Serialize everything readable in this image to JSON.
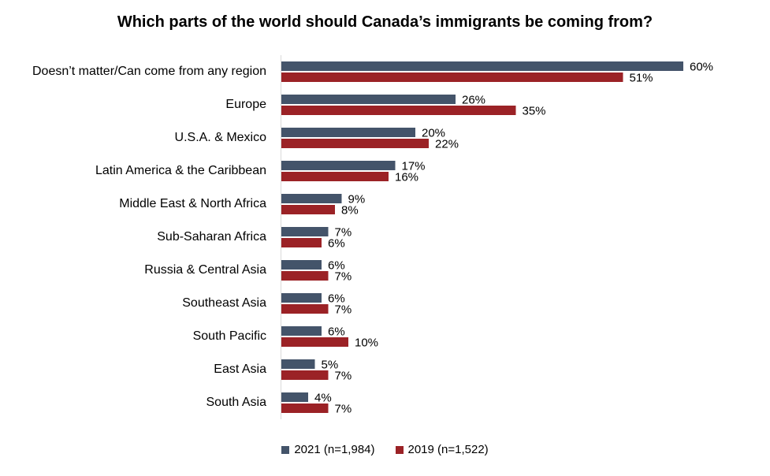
{
  "chart_data": {
    "type": "bar",
    "orientation": "horizontal",
    "title": "Which parts of the world should Canada’s immigrants be coming from?",
    "categories": [
      "Doesn’t matter/Can come from any region",
      "Europe",
      "U.S.A. & Mexico",
      "Latin America & the Caribbean",
      "Middle East & North Africa",
      "Sub-Saharan Africa",
      "Russia & Central Asia",
      "Southeast Asia",
      "South Pacific",
      "East Asia",
      "South Asia"
    ],
    "series": [
      {
        "name": "2021 (n=1,984)",
        "color": "#44546a",
        "values": [
          60,
          26,
          20,
          17,
          9,
          7,
          6,
          6,
          6,
          5,
          4
        ],
        "labels": [
          "60%",
          "26%",
          "20%",
          "17%",
          "9%",
          "7%",
          "6%",
          "6%",
          "6%",
          "5%",
          "4%"
        ]
      },
      {
        "name": "2019 (n=1,522)",
        "color": "#9b2226",
        "values": [
          51,
          35,
          22,
          16,
          8,
          6,
          7,
          7,
          10,
          7,
          7
        ],
        "labels": [
          "51%",
          "35%",
          "22%",
          "16%",
          "8%",
          "6%",
          "7%",
          "7%",
          "10%",
          "7%",
          "7%"
        ]
      }
    ],
    "xlim": [
      0,
      60
    ],
    "grid": false,
    "legend_position": "bottom"
  }
}
